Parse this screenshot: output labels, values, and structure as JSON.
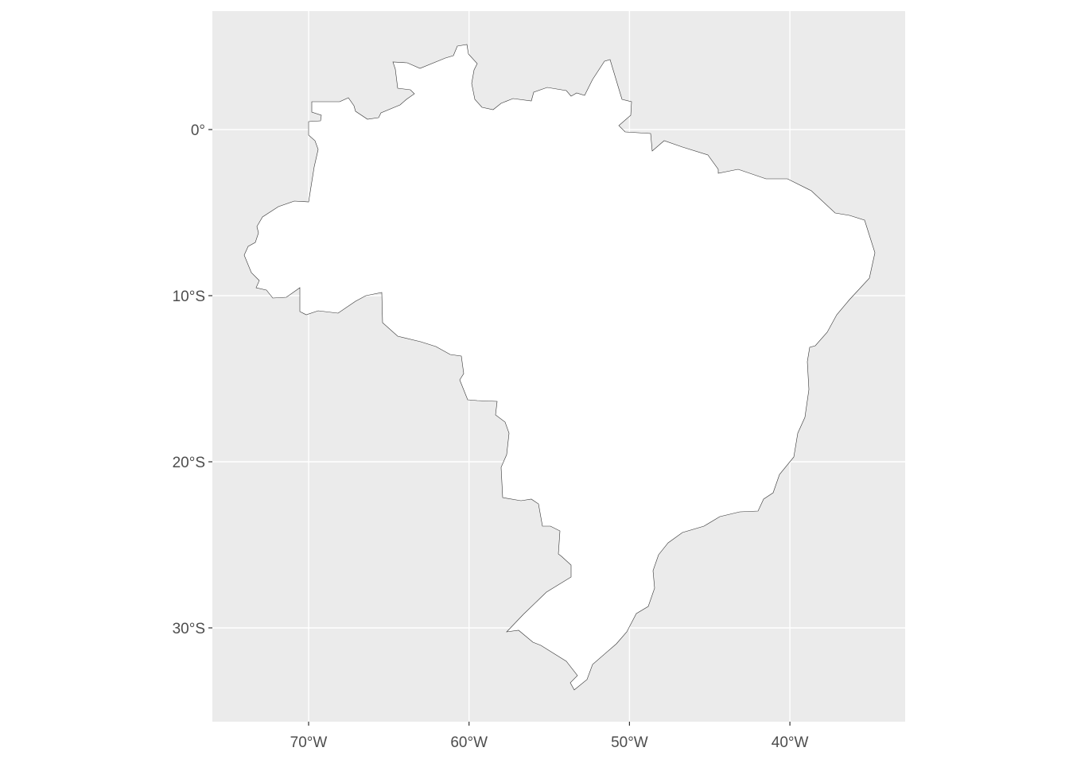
{
  "chart_data": {
    "type": "map",
    "title": "",
    "xlabel": "",
    "ylabel": "",
    "region": "Brazil outline",
    "xlim": [
      -76,
      -33
    ],
    "ylim": [
      -35.5,
      7
    ],
    "x_ticks": [
      {
        "value": -70,
        "label": "70°W"
      },
      {
        "value": -60,
        "label": "60°W"
      },
      {
        "value": -50,
        "label": "50°W"
      },
      {
        "value": -40,
        "label": "40°W"
      }
    ],
    "y_ticks": [
      {
        "value": 0,
        "label": "0°"
      },
      {
        "value": -10,
        "label": "10°S"
      },
      {
        "value": -20,
        "label": "20°S"
      },
      {
        "value": -30,
        "label": "30°S"
      }
    ],
    "grid": true,
    "colors": {
      "panel_background": "#EBEBEB",
      "grid": "#FFFFFF",
      "land_fill": "#FFFFFF",
      "border": "#333333"
    }
  }
}
